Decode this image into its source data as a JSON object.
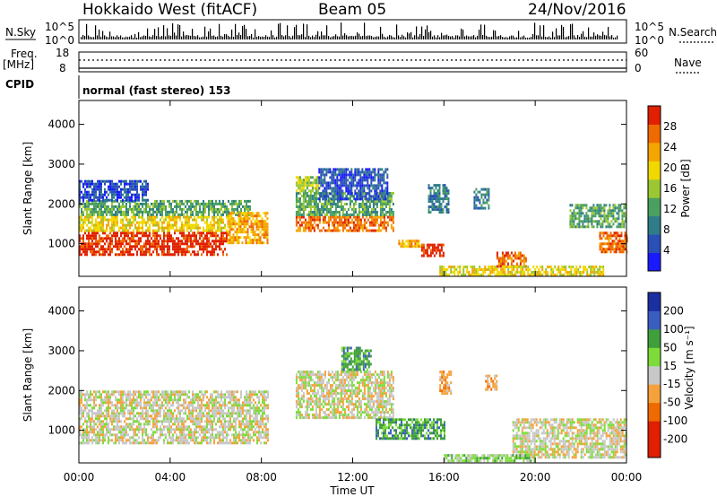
{
  "header": {
    "station": "Hokkaido West (fitACF)",
    "beam": "Beam 05",
    "date": "24/Nov/2016"
  },
  "aux": {
    "nsky_label": "N.Sky",
    "nsky_ticks": [
      "10^5",
      "10^0"
    ],
    "nsearch_label": "N.Search",
    "nsearch_ticks": [
      "10^5",
      "10^0"
    ],
    "freq_label": "Freq.",
    "freq_unit": "[MHz]",
    "freq_ticks": [
      "18",
      "8"
    ],
    "nave_label": "Nave",
    "nave_ticks": [
      "60",
      "0"
    ],
    "cpid_label": "CPID",
    "cpid_value": "normal (fast stereo) 153"
  },
  "chart_data": [
    {
      "type": "heatmap",
      "name": "power-panel",
      "ylabel": "Slant Range [km]",
      "xlabel": "",
      "ylim": [
        180,
        4600
      ],
      "yticks": [
        1000,
        2000,
        3000,
        4000
      ],
      "xticks": [
        "00:00",
        "04:00",
        "08:00",
        "12:00",
        "16:00",
        "20:00",
        "00:00"
      ],
      "colorbar": {
        "label": "Power [dB]",
        "ticks": [
          "4",
          "8",
          "12",
          "16",
          "20",
          "24",
          "28"
        ],
        "colors": [
          "#1a1aff",
          "#2a50b8",
          "#2f7d88",
          "#4aa060",
          "#9bc832",
          "#f0d800",
          "#f5a500",
          "#ef6a00",
          "#e02000"
        ]
      },
      "echo_regions": [
        {
          "t0": 0.0,
          "t1": 6.5,
          "r0": 700,
          "r1": 1300,
          "level": 8
        },
        {
          "t0": 0.0,
          "t1": 6.5,
          "r0": 1300,
          "r1": 1700,
          "level": 5
        },
        {
          "t0": 0.0,
          "t1": 7.5,
          "r0": 1700,
          "r1": 2100,
          "level": 3
        },
        {
          "t0": 0.0,
          "t1": 3.0,
          "r0": 2100,
          "r1": 2600,
          "level": 1
        },
        {
          "t0": 6.5,
          "t1": 8.3,
          "r0": 1000,
          "r1": 1800,
          "level": 6
        },
        {
          "t0": 9.5,
          "t1": 13.8,
          "r0": 1300,
          "r1": 1700,
          "level": 7
        },
        {
          "t0": 9.5,
          "t1": 13.8,
          "r0": 1700,
          "r1": 2300,
          "level": 3
        },
        {
          "t0": 9.5,
          "t1": 10.5,
          "r0": 2300,
          "r1": 2700,
          "level": 4
        },
        {
          "t0": 10.5,
          "t1": 13.5,
          "r0": 2100,
          "r1": 2900,
          "level": 1
        },
        {
          "t0": 14.0,
          "t1": 15.0,
          "r0": 900,
          "r1": 1100,
          "level": 6
        },
        {
          "t0": 15.0,
          "t1": 16.0,
          "r0": 700,
          "r1": 1000,
          "level": 8
        },
        {
          "t0": 15.3,
          "t1": 16.2,
          "r0": 1800,
          "r1": 2500,
          "level": 2
        },
        {
          "t0": 17.3,
          "t1": 18.0,
          "r0": 1900,
          "r1": 2400,
          "level": 2
        },
        {
          "t0": 18.3,
          "t1": 19.6,
          "r0": 400,
          "r1": 800,
          "level": 7
        },
        {
          "t0": 15.8,
          "t1": 23.0,
          "r0": 200,
          "r1": 450,
          "level": 5
        },
        {
          "t0": 21.5,
          "t1": 24.0,
          "r0": 1400,
          "r1": 2000,
          "level": 3
        },
        {
          "t0": 22.8,
          "t1": 24.0,
          "r0": 800,
          "r1": 1300,
          "level": 7
        }
      ]
    },
    {
      "type": "heatmap",
      "name": "velocity-panel",
      "ylabel": "Slant Range [km]",
      "xlabel": "Time UT",
      "ylim": [
        180,
        4600
      ],
      "yticks": [
        1000,
        2000,
        3000,
        4000
      ],
      "xticks": [
        "00:00",
        "04:00",
        "08:00",
        "12:00",
        "16:00",
        "20:00",
        "00:00"
      ],
      "colorbar": {
        "label": "Velocity [m s⁻¹]",
        "ticks": [
          "200",
          "100",
          "50",
          "15",
          "-15",
          "-50",
          "-100",
          "-200"
        ],
        "colors": [
          "#1a2fa0",
          "#3a5ec0",
          "#3f9f3a",
          "#7ddc3a",
          "#c8c8c8",
          "#f5a23c",
          "#ef6a00",
          "#e02000",
          "#e02000"
        ]
      },
      "echo_regions": [
        {
          "t0": 0.0,
          "t1": 8.3,
          "r0": 700,
          "r1": 2000,
          "level": 4
        },
        {
          "t0": 9.5,
          "t1": 13.8,
          "r0": 1300,
          "r1": 2500,
          "level": 4
        },
        {
          "t0": 11.5,
          "t1": 12.8,
          "r0": 2500,
          "r1": 3100,
          "level": 6
        },
        {
          "t0": 13.0,
          "t1": 16.0,
          "r0": 800,
          "r1": 1300,
          "level": 6
        },
        {
          "t0": 15.8,
          "t1": 16.3,
          "r0": 1900,
          "r1": 2500,
          "level": 3
        },
        {
          "t0": 17.8,
          "t1": 18.3,
          "r0": 2000,
          "r1": 2400,
          "level": 3
        },
        {
          "t0": 19.0,
          "t1": 24.0,
          "r0": 300,
          "r1": 1300,
          "level": 4
        },
        {
          "t0": 16.0,
          "t1": 20.0,
          "r0": 200,
          "r1": 400,
          "level": 5
        }
      ]
    }
  ]
}
